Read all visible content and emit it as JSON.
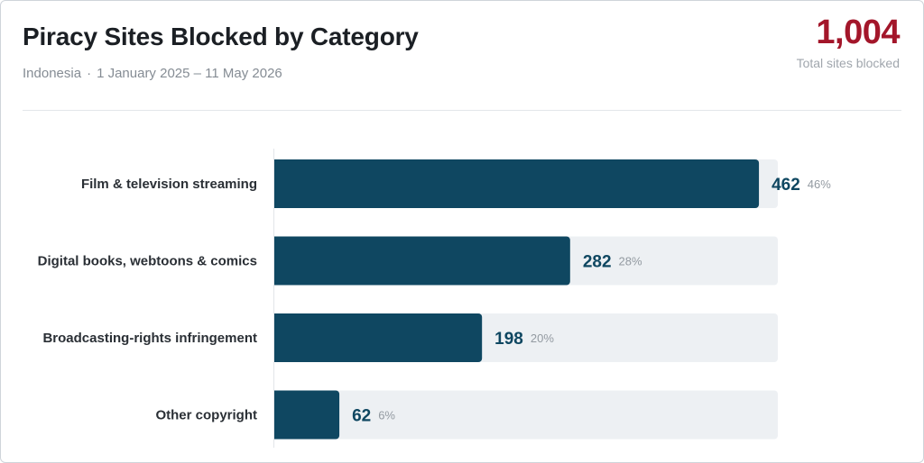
{
  "header": {
    "title": "Piracy Sites Blocked by Category",
    "region": "Indonesia",
    "separator": "·",
    "date_range": "1 January 2025 – 11 May 2026",
    "total_value": "1,004",
    "total_label": "Total sites blocked"
  },
  "colors": {
    "bar": "#0f4761",
    "track": "#edf0f3",
    "total": "#a3162a",
    "value_text": "#0f4761"
  },
  "chart_data": {
    "type": "bar",
    "orientation": "horizontal",
    "categories": [
      "Film & television streaming",
      "Digital books, webtoons & comics",
      "Broadcasting-rights infringement",
      "Other copyright"
    ],
    "values": [
      462,
      282,
      198,
      62
    ],
    "value_labels": [
      "462",
      "282",
      "198",
      "62"
    ],
    "percent_labels": [
      "46%",
      "28%",
      "20%",
      "6%"
    ],
    "xlim": [
      0,
      480
    ],
    "grid": false,
    "legend": "none"
  }
}
